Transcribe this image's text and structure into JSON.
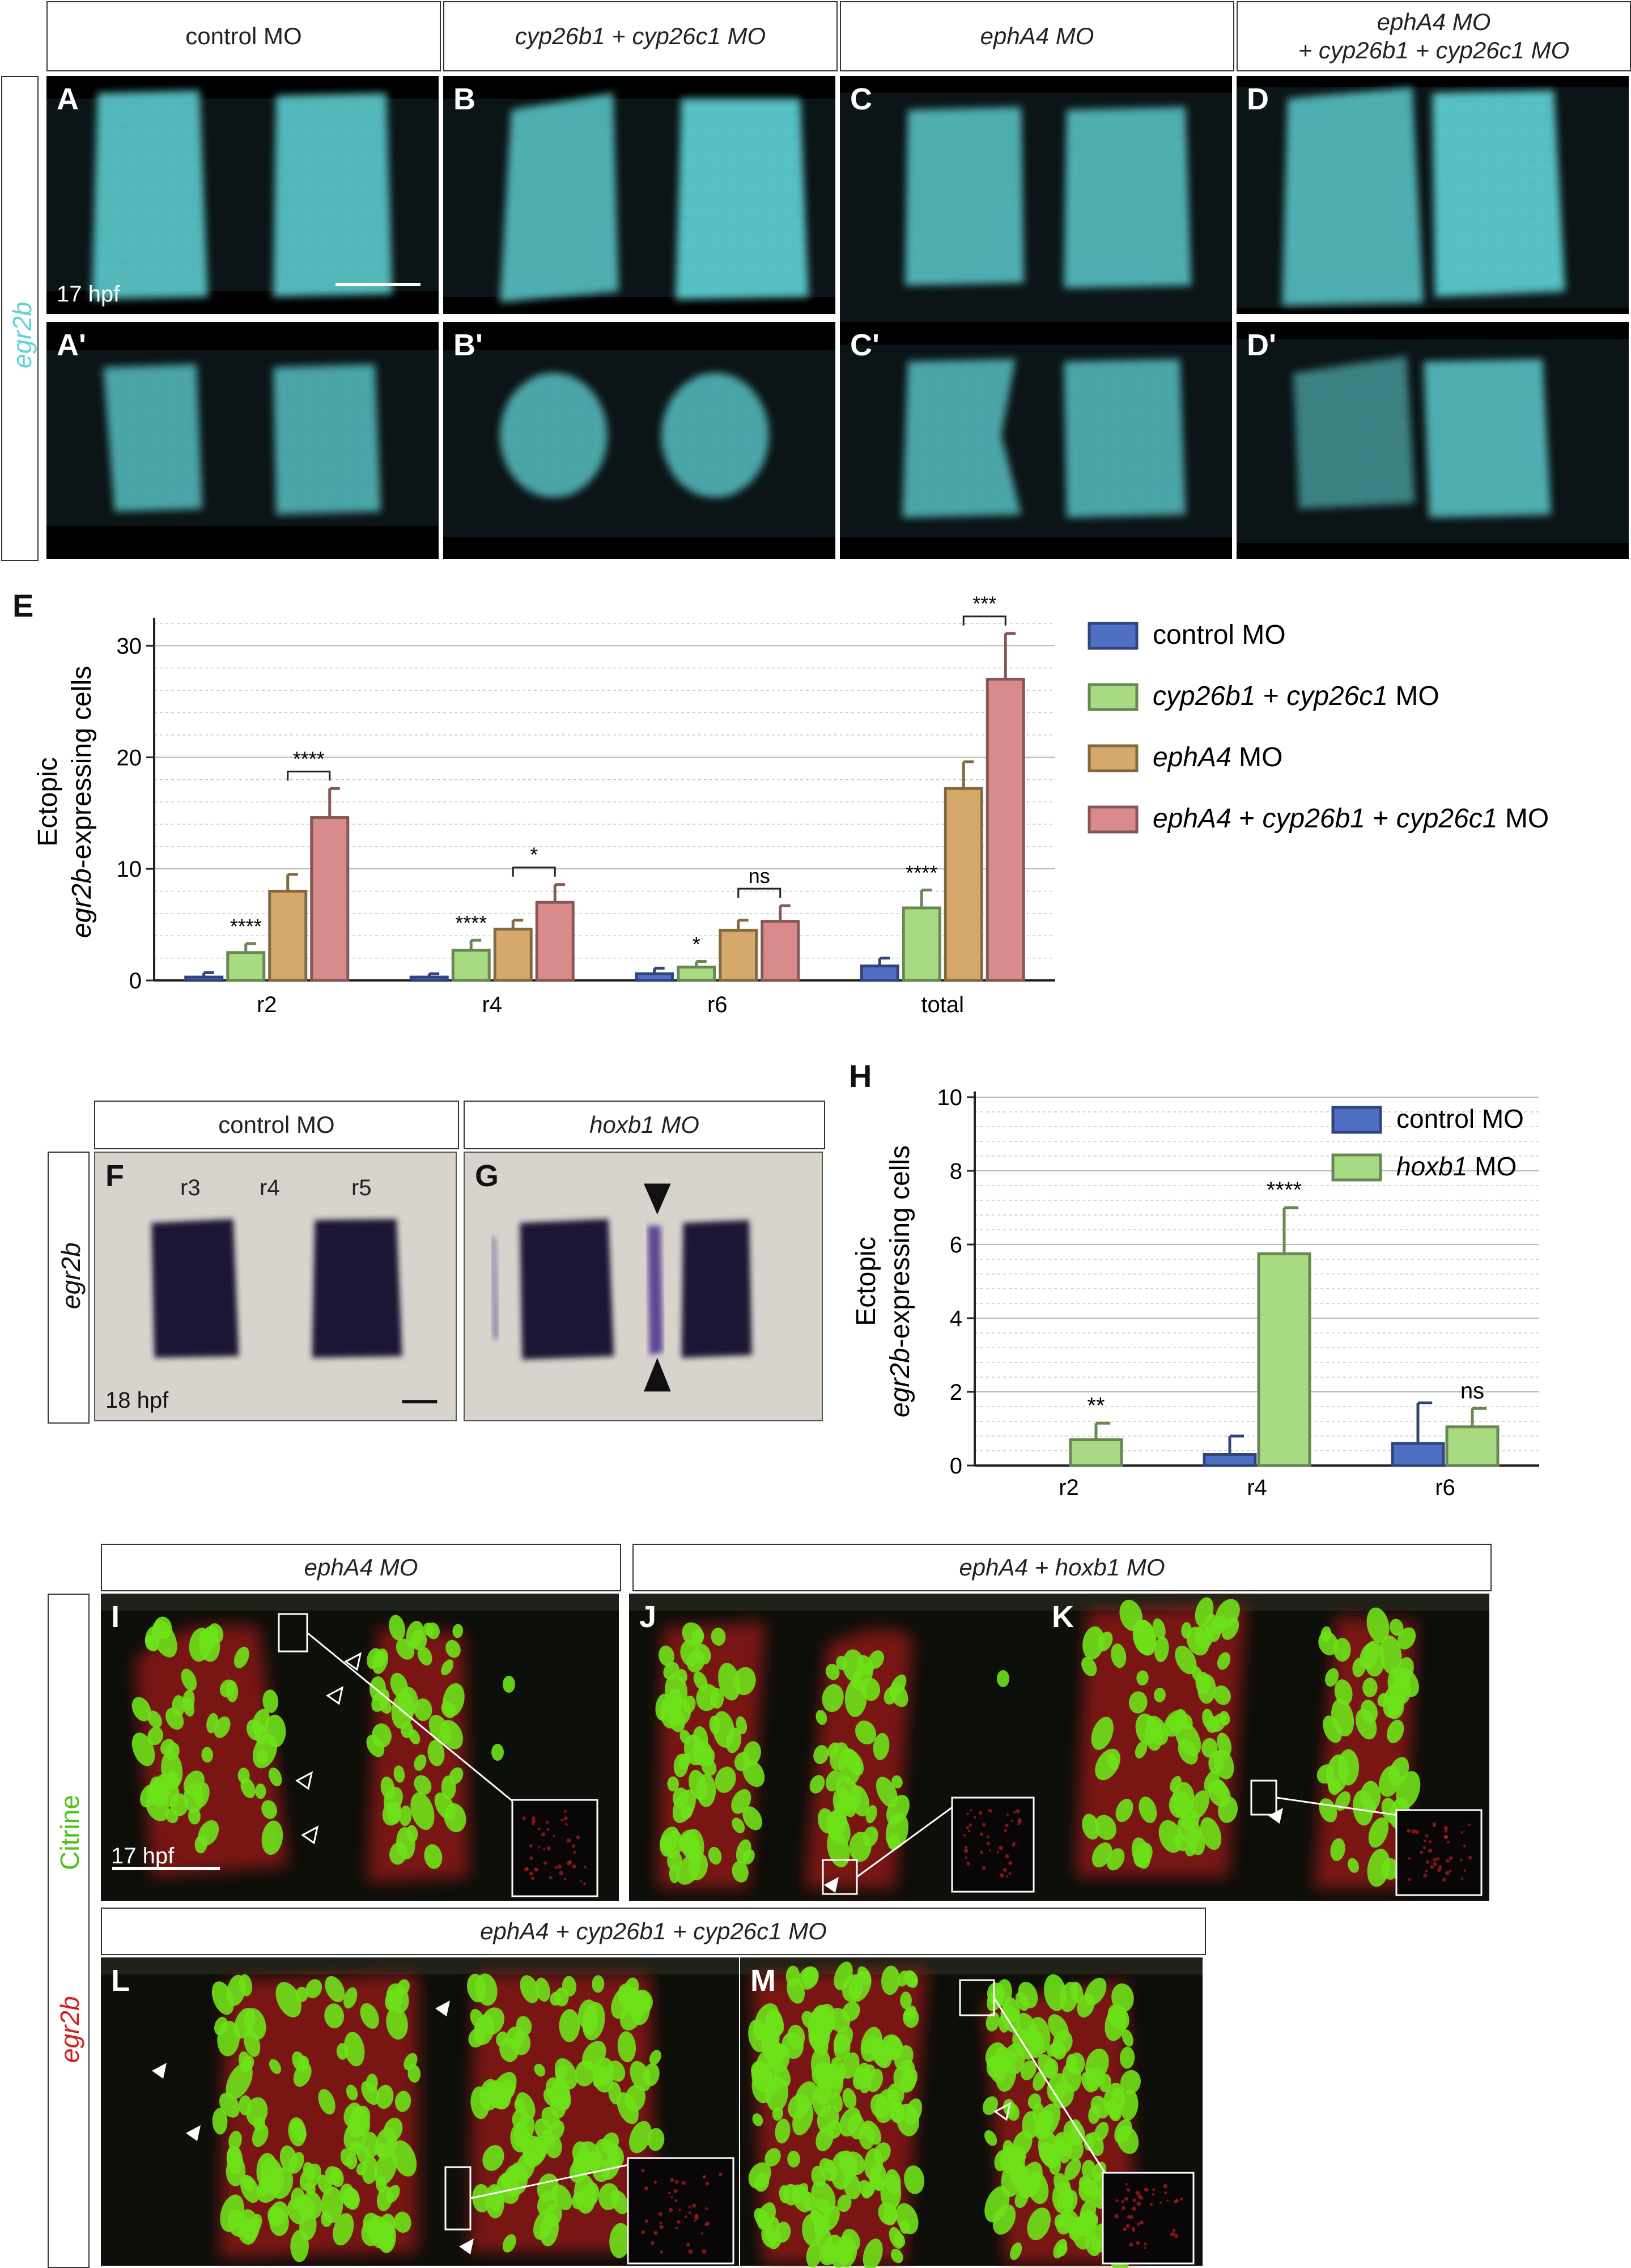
{
  "top_row": {
    "headers": [
      "control MO",
      "cyp26b1 + cyp26c1 MO",
      "ephA4 MO",
      "ephA4 MO\n+ cyp26b1 + cyp26c1 MO"
    ],
    "side_label": "egr2b",
    "panels_upper": [
      "A",
      "B",
      "C",
      "D"
    ],
    "panels_lower": [
      "A'",
      "B'",
      "C'",
      "D'"
    ],
    "stage": "17 hpf",
    "stain_color": "#5fd3d6"
  },
  "panel_E": {
    "letter": "E",
    "chart_data": {
      "type": "bar",
      "categories": [
        "r2",
        "r4",
        "r6",
        "total"
      ],
      "series": [
        {
          "name": "control MO",
          "values": [
            0.3,
            0.3,
            0.6,
            1.3
          ],
          "errors": [
            0.4,
            0.3,
            0.5,
            0.7
          ],
          "color": "#4f6fc4"
        },
        {
          "name": "cyp26b1 + cyp26c1 MO",
          "values": [
            2.5,
            2.7,
            1.2,
            6.5
          ],
          "errors": [
            0.8,
            0.9,
            0.5,
            1.6
          ],
          "color": "#a8d983"
        },
        {
          "name": "ephA4 MO",
          "values": [
            8.0,
            4.6,
            4.5,
            17.2
          ],
          "errors": [
            1.5,
            0.8,
            0.9,
            2.4
          ],
          "color": "#d4a96a"
        },
        {
          "name": "ephA4 + cyp26b1 + cyp26c1 MO",
          "values": [
            14.6,
            7.0,
            5.3,
            27.0
          ],
          "errors": [
            2.6,
            1.6,
            1.4,
            4.1
          ],
          "color": "#d98b8b"
        }
      ],
      "ylim": [
        0,
        32
      ],
      "yticks": [
        0,
        10,
        20,
        30
      ],
      "ylabel_line1": "Ectopic",
      "ylabel_line2": "egr2b-expressing cells",
      "xlabel": "",
      "annotations": [
        {
          "category": "r2",
          "series": 1,
          "text": "****"
        },
        {
          "category": "r2",
          "bracket": [
            2,
            3
          ],
          "text": "****"
        },
        {
          "category": "r4",
          "series": 1,
          "text": "****"
        },
        {
          "category": "r4",
          "bracket": [
            2,
            3
          ],
          "text": "*"
        },
        {
          "category": "r6",
          "series": 1,
          "text": "*"
        },
        {
          "category": "r6",
          "bracket": [
            2,
            3
          ],
          "text": "ns"
        },
        {
          "category": "total",
          "series": 1,
          "text": "****"
        },
        {
          "category": "total",
          "bracket": [
            2,
            3
          ],
          "text": "***"
        }
      ],
      "legend_position": "right",
      "grid": true
    }
  },
  "panels_FG": {
    "headers": [
      "control MO",
      "hoxb1 MO"
    ],
    "side_label": "egr2b",
    "letters": [
      "F",
      "G"
    ],
    "rhombomeres": [
      "r3",
      "r4",
      "r5"
    ],
    "stage": "18 hpf",
    "stain_color": "#1e1434"
  },
  "panel_H": {
    "letter": "H",
    "chart_data": {
      "type": "bar",
      "categories": [
        "r2",
        "r4",
        "r6"
      ],
      "series": [
        {
          "name": "control MO",
          "values": [
            0.0,
            0.3,
            0.6
          ],
          "errors": [
            0.0,
            0.5,
            1.1
          ],
          "color": "#4f6fc4"
        },
        {
          "name": "hoxb1 MO",
          "values": [
            0.7,
            5.75,
            1.05
          ],
          "errors": [
            0.45,
            1.25,
            0.5
          ],
          "color": "#a8d983"
        }
      ],
      "ylim": [
        0,
        10
      ],
      "yticks": [
        0,
        2,
        4,
        6,
        8,
        10
      ],
      "ylabel_line1": "Ectopic",
      "ylabel_line2": "egr2b-expressing cells",
      "xlabel": "",
      "annotations": [
        {
          "category": "r2",
          "text": "**"
        },
        {
          "category": "r4",
          "text": "****"
        },
        {
          "category": "r6",
          "text": "ns"
        }
      ],
      "legend_position": "top-right",
      "grid": true
    }
  },
  "bottom": {
    "header_I": "ephA4 MO",
    "header_JK": "ephA4 + hoxb1 MO",
    "header_LM": "ephA4 + cyp26b1 + cyp26c1 MO",
    "side_label_green": "Citrine",
    "side_label_red": "egr2b",
    "letters": [
      "I",
      "J",
      "K",
      "L",
      "M"
    ],
    "stage": "17 hpf",
    "green": "#6ee21a",
    "red": "#d21e1e"
  }
}
